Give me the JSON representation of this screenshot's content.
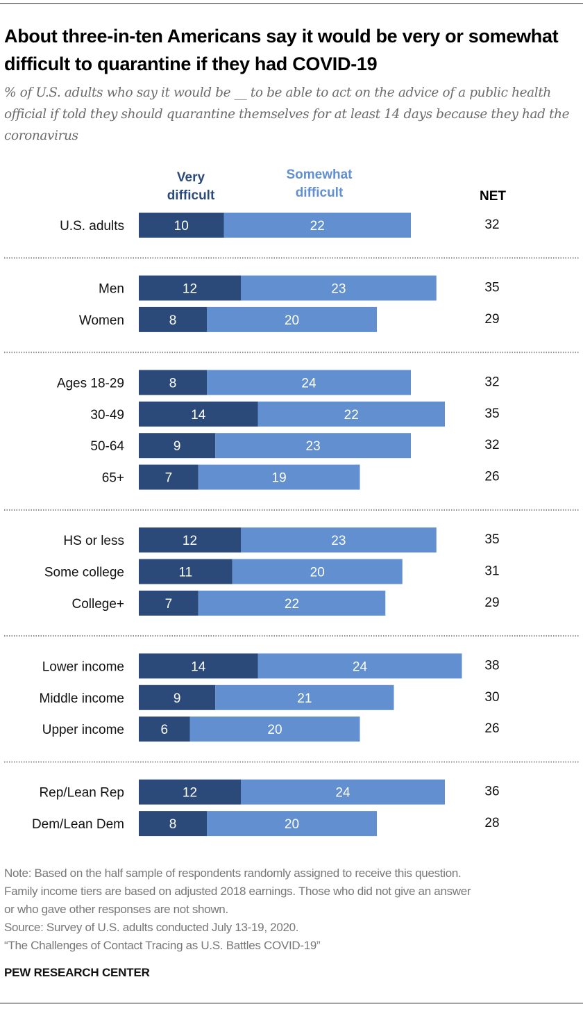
{
  "header": {
    "title": "About three-in-ten Americans say it would be very or somewhat difficult to quarantine if they had COVID-19",
    "subtitle": "% of U.S. adults who say it would be __ to be able to act on the advice of a public health official if told they should quarantine themselves for at least 14 days because they had the coronavirus"
  },
  "colors": {
    "very_difficult": "#2b4a7a",
    "somewhat_difficult": "#618fd0"
  },
  "chart_data": {
    "type": "bar",
    "orientation": "horizontal",
    "stacked": true,
    "title": "About three-in-ten Americans say it would be very or somewhat difficult to quarantine if they had COVID-19",
    "legend": [
      "Very difficult",
      "Somewhat difficult"
    ],
    "legend_placement": "top",
    "net_header": "NET",
    "categories": [
      "U.S. adults",
      "Men",
      "Women",
      "Ages 18-29",
      "30-49",
      "50-64",
      "65+",
      "HS or less",
      "Some college",
      "College+",
      "Lower income",
      "Middle income",
      "Upper income",
      "Rep/Lean Rep",
      "Dem/Lean Dem"
    ],
    "groups": [
      [
        "U.S. adults"
      ],
      [
        "Men",
        "Women"
      ],
      [
        "Ages 18-29",
        "30-49",
        "50-64",
        "65+"
      ],
      [
        "HS or less",
        "Some college",
        "College+"
      ],
      [
        "Lower income",
        "Middle income",
        "Upper income"
      ],
      [
        "Rep/Lean Rep",
        "Dem/Lean Dem"
      ]
    ],
    "series": [
      {
        "name": "Very difficult",
        "values": [
          10,
          12,
          8,
          8,
          14,
          9,
          7,
          12,
          11,
          7,
          14,
          9,
          6,
          12,
          8
        ]
      },
      {
        "name": "Somewhat difficult",
        "values": [
          22,
          23,
          20,
          24,
          22,
          23,
          19,
          23,
          20,
          22,
          24,
          21,
          20,
          24,
          20
        ]
      }
    ],
    "net": [
      32,
      35,
      29,
      32,
      35,
      32,
      26,
      35,
      31,
      29,
      38,
      30,
      26,
      36,
      28
    ],
    "xlabel": "",
    "ylabel": "",
    "xlim": [
      0,
      40
    ],
    "grid": false
  },
  "legend": {
    "very_line1": "Very",
    "very_line2": "difficult",
    "somewhat_line1": "Somewhat",
    "somewhat_line2": "difficult",
    "net": "NET"
  },
  "footer": {
    "note_lines": [
      "Note: Based on the half sample of respondents randomly assigned to receive this question.",
      "Family income tiers are based on adjusted 2018 earnings. Those who did not give an answer",
      "or who gave other responses are not shown."
    ],
    "source": "Source: Survey of U.S. adults conducted July 13-19, 2020.",
    "report": "“The Challenges of Contact Tracing as U.S. Battles COVID-19”",
    "brand": "PEW RESEARCH CENTER"
  }
}
